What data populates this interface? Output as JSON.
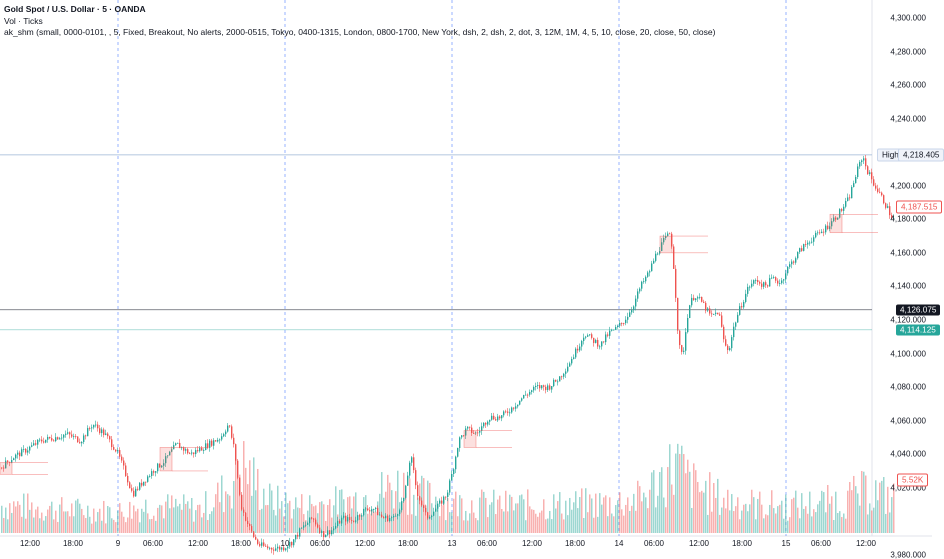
{
  "legend": {
    "symbol": "Gold Spot / U.S. Dollar · 5 · OANDA",
    "volume": "Vol · Ticks",
    "indicator": "ak_shm (small, 0000-0101, , 5, Fixed, Breakout, No alerts, 2000-0515, Tokyo, 0400-1315, London, 0800-1700, New York, dsh, 2, dsh, 2, dot, 3, 12M, 1M, 4, 5, 10, close, 20, close, 50, close)"
  },
  "price_axis": {
    "ticks": [
      "4,300.000",
      "4,280.000",
      "4,260.000",
      "4,240.000",
      "4,200.000",
      "4,180.000",
      "4,160.000",
      "4,140.000",
      "4,120.000",
      "4,100.000",
      "4,080.000",
      "4,060.000",
      "4,040.000",
      "4,020.000",
      "3,980.000"
    ],
    "tick_values": [
      4300,
      4280,
      4260,
      4240,
      4200,
      4180,
      4160,
      4140,
      4120,
      4100,
      4080,
      4060,
      4040,
      4020,
      3980
    ]
  },
  "time_axis": {
    "ticks": [
      "12:00",
      "18:00",
      "9",
      "06:00",
      "12:00",
      "18:00",
      "10",
      "06:00",
      "12:00",
      "18:00",
      "13",
      "06:00",
      "12:00",
      "18:00",
      "14",
      "06:00",
      "12:00",
      "18:00",
      "15",
      "06:00",
      "12:00"
    ]
  },
  "badges": {
    "high_label": "High",
    "high_value": "4,218.405",
    "red_value": "4,187.515",
    "close_value": "4,126.075",
    "green_value": "4,114.125",
    "volume_value": "5.52K"
  },
  "colors": {
    "up": "#26a69a",
    "down": "#ef5350",
    "session_line": "#2962ff",
    "high_line": "#9bb5d6",
    "close_line": "#131722",
    "green_line": "#26a69a"
  },
  "chart_data": {
    "type": "candlestick",
    "title": "Gold Spot / U.S. Dollar · 5 · OANDA",
    "ylim": [
      3975,
      4305
    ],
    "session_starts": [
      "9",
      "10",
      "13",
      "14",
      "15"
    ],
    "levels": {
      "high": 4218.405,
      "red": 4187.515,
      "close": 4126.075,
      "green": 4114.125
    },
    "trend_anchors_price": [
      [
        0,
        4032
      ],
      [
        12,
        4038
      ],
      [
        24,
        4042
      ],
      [
        40,
        4048
      ],
      [
        55,
        4050
      ],
      [
        66,
        4052
      ],
      [
        80,
        4048
      ],
      [
        92,
        4058
      ],
      [
        104,
        4052
      ],
      [
        116,
        4042
      ],
      [
        124,
        4030
      ],
      [
        132,
        4016
      ],
      [
        140,
        4022
      ],
      [
        152,
        4030
      ],
      [
        164,
        4036
      ],
      [
        176,
        4046
      ],
      [
        190,
        4040
      ],
      [
        205,
        4045
      ],
      [
        220,
        4050
      ],
      [
        228,
        4058
      ],
      [
        234,
        4042
      ],
      [
        240,
        4010
      ],
      [
        246,
        4000
      ],
      [
        252,
        3992
      ],
      [
        258,
        3986
      ],
      [
        268,
        3984
      ],
      [
        282,
        3984
      ],
      [
        292,
        3988
      ],
      [
        300,
        3995
      ],
      [
        312,
        4002
      ],
      [
        322,
        3992
      ],
      [
        332,
        3995
      ],
      [
        342,
        4002
      ],
      [
        352,
        4000
      ],
      [
        362,
        4006
      ],
      [
        372,
        4008
      ],
      [
        382,
        4002
      ],
      [
        394,
        4002
      ],
      [
        404,
        4015
      ],
      [
        410,
        4040
      ],
      [
        416,
        4018
      ],
      [
        426,
        4002
      ],
      [
        436,
        4008
      ],
      [
        446,
        4016
      ],
      [
        452,
        4030
      ],
      [
        458,
        4048
      ],
      [
        466,
        4055
      ],
      [
        476,
        4052
      ],
      [
        488,
        4062
      ],
      [
        500,
        4062
      ],
      [
        512,
        4068
      ],
      [
        524,
        4075
      ],
      [
        536,
        4080
      ],
      [
        548,
        4080
      ],
      [
        558,
        4085
      ],
      [
        566,
        4092
      ],
      [
        574,
        4100
      ],
      [
        584,
        4112
      ],
      [
        592,
        4108
      ],
      [
        600,
        4105
      ],
      [
        608,
        4112
      ],
      [
        616,
        4115
      ],
      [
        624,
        4120
      ],
      [
        632,
        4128
      ],
      [
        640,
        4140
      ],
      [
        648,
        4148
      ],
      [
        656,
        4160
      ],
      [
        664,
        4168
      ],
      [
        670,
        4172
      ],
      [
        674,
        4145
      ],
      [
        678,
        4105
      ],
      [
        682,
        4098
      ],
      [
        688,
        4128
      ],
      [
        694,
        4135
      ],
      [
        702,
        4130
      ],
      [
        710,
        4122
      ],
      [
        718,
        4125
      ],
      [
        724,
        4105
      ],
      [
        728,
        4102
      ],
      [
        734,
        4118
      ],
      [
        740,
        4128
      ],
      [
        748,
        4140
      ],
      [
        756,
        4144
      ],
      [
        764,
        4140
      ],
      [
        772,
        4145
      ],
      [
        780,
        4142
      ],
      [
        786,
        4150
      ],
      [
        792,
        4155
      ],
      [
        800,
        4162
      ],
      [
        810,
        4168
      ],
      [
        820,
        4172
      ],
      [
        830,
        4178
      ],
      [
        840,
        4185
      ],
      [
        848,
        4192
      ],
      [
        856,
        4208
      ],
      [
        862,
        4218
      ],
      [
        866,
        4210
      ],
      [
        870,
        4205
      ],
      [
        876,
        4198
      ],
      [
        884,
        4190
      ],
      [
        892,
        4180
      ]
    ],
    "volume_anchors_k": [
      [
        0,
        2.6
      ],
      [
        60,
        2.2
      ],
      [
        120,
        2.0
      ],
      [
        150,
        2.6
      ],
      [
        200,
        2.2
      ],
      [
        228,
        4.2
      ],
      [
        240,
        6.5
      ],
      [
        252,
        5.0
      ],
      [
        270,
        3.0
      ],
      [
        300,
        2.5
      ],
      [
        350,
        3.0
      ],
      [
        400,
        4.5
      ],
      [
        420,
        3.5
      ],
      [
        450,
        2.8
      ],
      [
        500,
        2.6
      ],
      [
        560,
        2.6
      ],
      [
        610,
        2.8
      ],
      [
        640,
        3.2
      ],
      [
        676,
        6.5
      ],
      [
        690,
        4.5
      ],
      [
        720,
        3.2
      ],
      [
        760,
        2.6
      ],
      [
        800,
        2.6
      ],
      [
        840,
        3.0
      ],
      [
        870,
        4.0
      ],
      [
        892,
        3.2
      ]
    ]
  }
}
